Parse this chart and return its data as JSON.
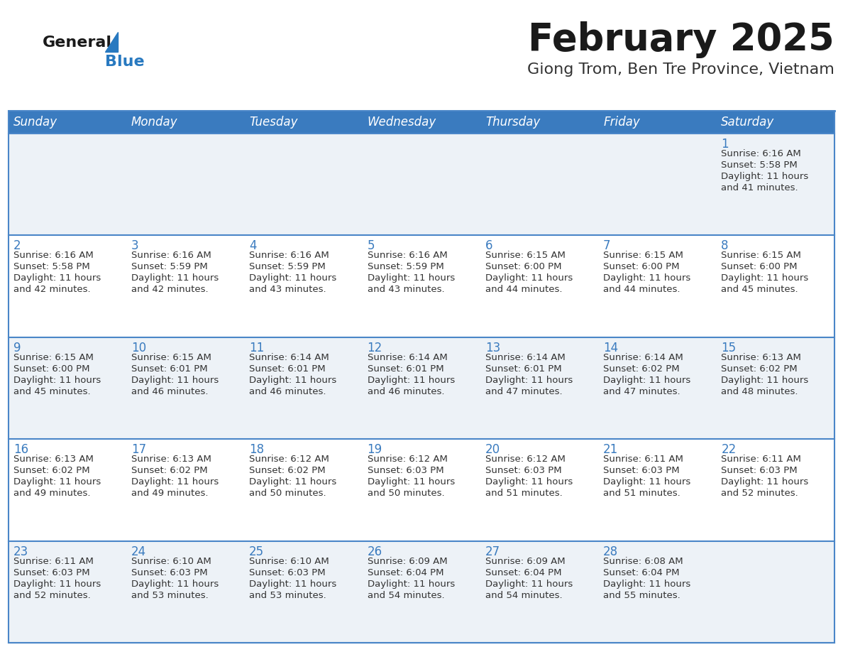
{
  "title": "February 2025",
  "subtitle": "Giong Trom, Ben Tre Province, Vietnam",
  "header_color": "#3a7bbf",
  "header_text_color": "#ffffff",
  "day_names": [
    "Sunday",
    "Monday",
    "Tuesday",
    "Wednesday",
    "Thursday",
    "Friday",
    "Saturday"
  ],
  "title_color": "#1a1a1a",
  "subtitle_color": "#333333",
  "cell_bg_odd": "#edf2f7",
  "cell_bg_even": "#ffffff",
  "day_number_color": "#3a7bbf",
  "text_color": "#333333",
  "logo_general_color": "#1a1a1a",
  "logo_blue_color": "#2879c0",
  "separator_color": "#4a86c8",
  "days": [
    {
      "day": 1,
      "col": 6,
      "row": 0,
      "sunrise": "6:16 AM",
      "sunset": "5:58 PM",
      "daylight": "11 hours and 41 minutes."
    },
    {
      "day": 2,
      "col": 0,
      "row": 1,
      "sunrise": "6:16 AM",
      "sunset": "5:58 PM",
      "daylight": "11 hours and 42 minutes."
    },
    {
      "day": 3,
      "col": 1,
      "row": 1,
      "sunrise": "6:16 AM",
      "sunset": "5:59 PM",
      "daylight": "11 hours and 42 minutes."
    },
    {
      "day": 4,
      "col": 2,
      "row": 1,
      "sunrise": "6:16 AM",
      "sunset": "5:59 PM",
      "daylight": "11 hours and 43 minutes."
    },
    {
      "day": 5,
      "col": 3,
      "row": 1,
      "sunrise": "6:16 AM",
      "sunset": "5:59 PM",
      "daylight": "11 hours and 43 minutes."
    },
    {
      "day": 6,
      "col": 4,
      "row": 1,
      "sunrise": "6:15 AM",
      "sunset": "6:00 PM",
      "daylight": "11 hours and 44 minutes."
    },
    {
      "day": 7,
      "col": 5,
      "row": 1,
      "sunrise": "6:15 AM",
      "sunset": "6:00 PM",
      "daylight": "11 hours and 44 minutes."
    },
    {
      "day": 8,
      "col": 6,
      "row": 1,
      "sunrise": "6:15 AM",
      "sunset": "6:00 PM",
      "daylight": "11 hours and 45 minutes."
    },
    {
      "day": 9,
      "col": 0,
      "row": 2,
      "sunrise": "6:15 AM",
      "sunset": "6:00 PM",
      "daylight": "11 hours and 45 minutes."
    },
    {
      "day": 10,
      "col": 1,
      "row": 2,
      "sunrise": "6:15 AM",
      "sunset": "6:01 PM",
      "daylight": "11 hours and 46 minutes."
    },
    {
      "day": 11,
      "col": 2,
      "row": 2,
      "sunrise": "6:14 AM",
      "sunset": "6:01 PM",
      "daylight": "11 hours and 46 minutes."
    },
    {
      "day": 12,
      "col": 3,
      "row": 2,
      "sunrise": "6:14 AM",
      "sunset": "6:01 PM",
      "daylight": "11 hours and 46 minutes."
    },
    {
      "day": 13,
      "col": 4,
      "row": 2,
      "sunrise": "6:14 AM",
      "sunset": "6:01 PM",
      "daylight": "11 hours and 47 minutes."
    },
    {
      "day": 14,
      "col": 5,
      "row": 2,
      "sunrise": "6:14 AM",
      "sunset": "6:02 PM",
      "daylight": "11 hours and 47 minutes."
    },
    {
      "day": 15,
      "col": 6,
      "row": 2,
      "sunrise": "6:13 AM",
      "sunset": "6:02 PM",
      "daylight": "11 hours and 48 minutes."
    },
    {
      "day": 16,
      "col": 0,
      "row": 3,
      "sunrise": "6:13 AM",
      "sunset": "6:02 PM",
      "daylight": "11 hours and 49 minutes."
    },
    {
      "day": 17,
      "col": 1,
      "row": 3,
      "sunrise": "6:13 AM",
      "sunset": "6:02 PM",
      "daylight": "11 hours and 49 minutes."
    },
    {
      "day": 18,
      "col": 2,
      "row": 3,
      "sunrise": "6:12 AM",
      "sunset": "6:02 PM",
      "daylight": "11 hours and 50 minutes."
    },
    {
      "day": 19,
      "col": 3,
      "row": 3,
      "sunrise": "6:12 AM",
      "sunset": "6:03 PM",
      "daylight": "11 hours and 50 minutes."
    },
    {
      "day": 20,
      "col": 4,
      "row": 3,
      "sunrise": "6:12 AM",
      "sunset": "6:03 PM",
      "daylight": "11 hours and 51 minutes."
    },
    {
      "day": 21,
      "col": 5,
      "row": 3,
      "sunrise": "6:11 AM",
      "sunset": "6:03 PM",
      "daylight": "11 hours and 51 minutes."
    },
    {
      "day": 22,
      "col": 6,
      "row": 3,
      "sunrise": "6:11 AM",
      "sunset": "6:03 PM",
      "daylight": "11 hours and 52 minutes."
    },
    {
      "day": 23,
      "col": 0,
      "row": 4,
      "sunrise": "6:11 AM",
      "sunset": "6:03 PM",
      "daylight": "11 hours and 52 minutes."
    },
    {
      "day": 24,
      "col": 1,
      "row": 4,
      "sunrise": "6:10 AM",
      "sunset": "6:03 PM",
      "daylight": "11 hours and 53 minutes."
    },
    {
      "day": 25,
      "col": 2,
      "row": 4,
      "sunrise": "6:10 AM",
      "sunset": "6:03 PM",
      "daylight": "11 hours and 53 minutes."
    },
    {
      "day": 26,
      "col": 3,
      "row": 4,
      "sunrise": "6:09 AM",
      "sunset": "6:04 PM",
      "daylight": "11 hours and 54 minutes."
    },
    {
      "day": 27,
      "col": 4,
      "row": 4,
      "sunrise": "6:09 AM",
      "sunset": "6:04 PM",
      "daylight": "11 hours and 54 minutes."
    },
    {
      "day": 28,
      "col": 5,
      "row": 4,
      "sunrise": "6:08 AM",
      "sunset": "6:04 PM",
      "daylight": "11 hours and 55 minutes."
    }
  ]
}
